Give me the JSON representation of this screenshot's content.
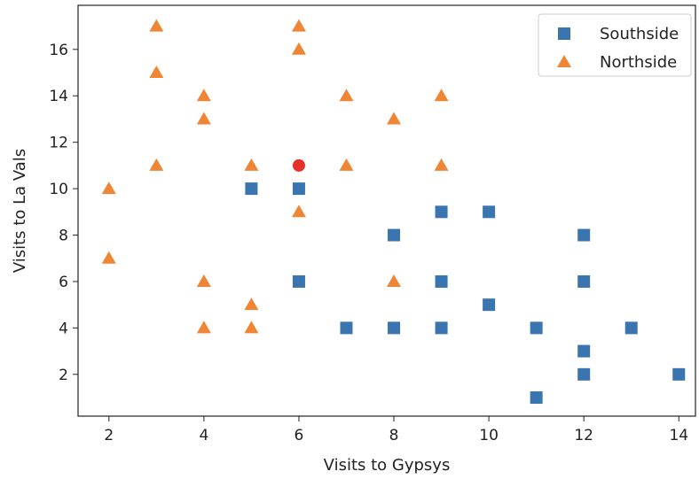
{
  "chart_data": {
    "type": "scatter",
    "xlabel": "Visits to Gypsys",
    "ylabel": "Visits to La Vals",
    "xlim": [
      1.35,
      14.35
    ],
    "ylim": [
      0.2,
      17.9
    ],
    "x_ticks": [
      2,
      4,
      6,
      8,
      10,
      12,
      14
    ],
    "y_ticks": [
      2,
      4,
      6,
      8,
      10,
      12,
      14,
      16
    ],
    "grid": false,
    "legend_position": "top-right",
    "series": [
      {
        "name": "Southside",
        "marker": "square",
        "color": "#3a75b0",
        "points": [
          [
            5,
            10
          ],
          [
            6,
            10
          ],
          [
            6,
            6
          ],
          [
            7,
            4
          ],
          [
            8,
            8
          ],
          [
            8,
            4
          ],
          [
            9,
            9
          ],
          [
            9,
            6
          ],
          [
            9,
            4
          ],
          [
            10,
            9
          ],
          [
            10,
            5
          ],
          [
            11,
            4
          ],
          [
            11,
            1
          ],
          [
            12,
            8
          ],
          [
            12,
            6
          ],
          [
            12,
            3
          ],
          [
            12,
            2
          ],
          [
            13,
            4
          ],
          [
            14,
            2
          ]
        ]
      },
      {
        "name": "Northside",
        "marker": "triangle",
        "color": "#ef8636",
        "points": [
          [
            2,
            10
          ],
          [
            2,
            7
          ],
          [
            3,
            17
          ],
          [
            3,
            15
          ],
          [
            3,
            11
          ],
          [
            4,
            14
          ],
          [
            4,
            13
          ],
          [
            4,
            6
          ],
          [
            4,
            4
          ],
          [
            5,
            11
          ],
          [
            5,
            5
          ],
          [
            5,
            4
          ],
          [
            6,
            17
          ],
          [
            6,
            16
          ],
          [
            6,
            9
          ],
          [
            7,
            14
          ],
          [
            7,
            11
          ],
          [
            8,
            13
          ],
          [
            8,
            6
          ],
          [
            9,
            14
          ],
          [
            9,
            11
          ]
        ]
      }
    ],
    "highlight": {
      "marker": "circle",
      "color": "#e8302a",
      "point": [
        6,
        11
      ]
    }
  }
}
